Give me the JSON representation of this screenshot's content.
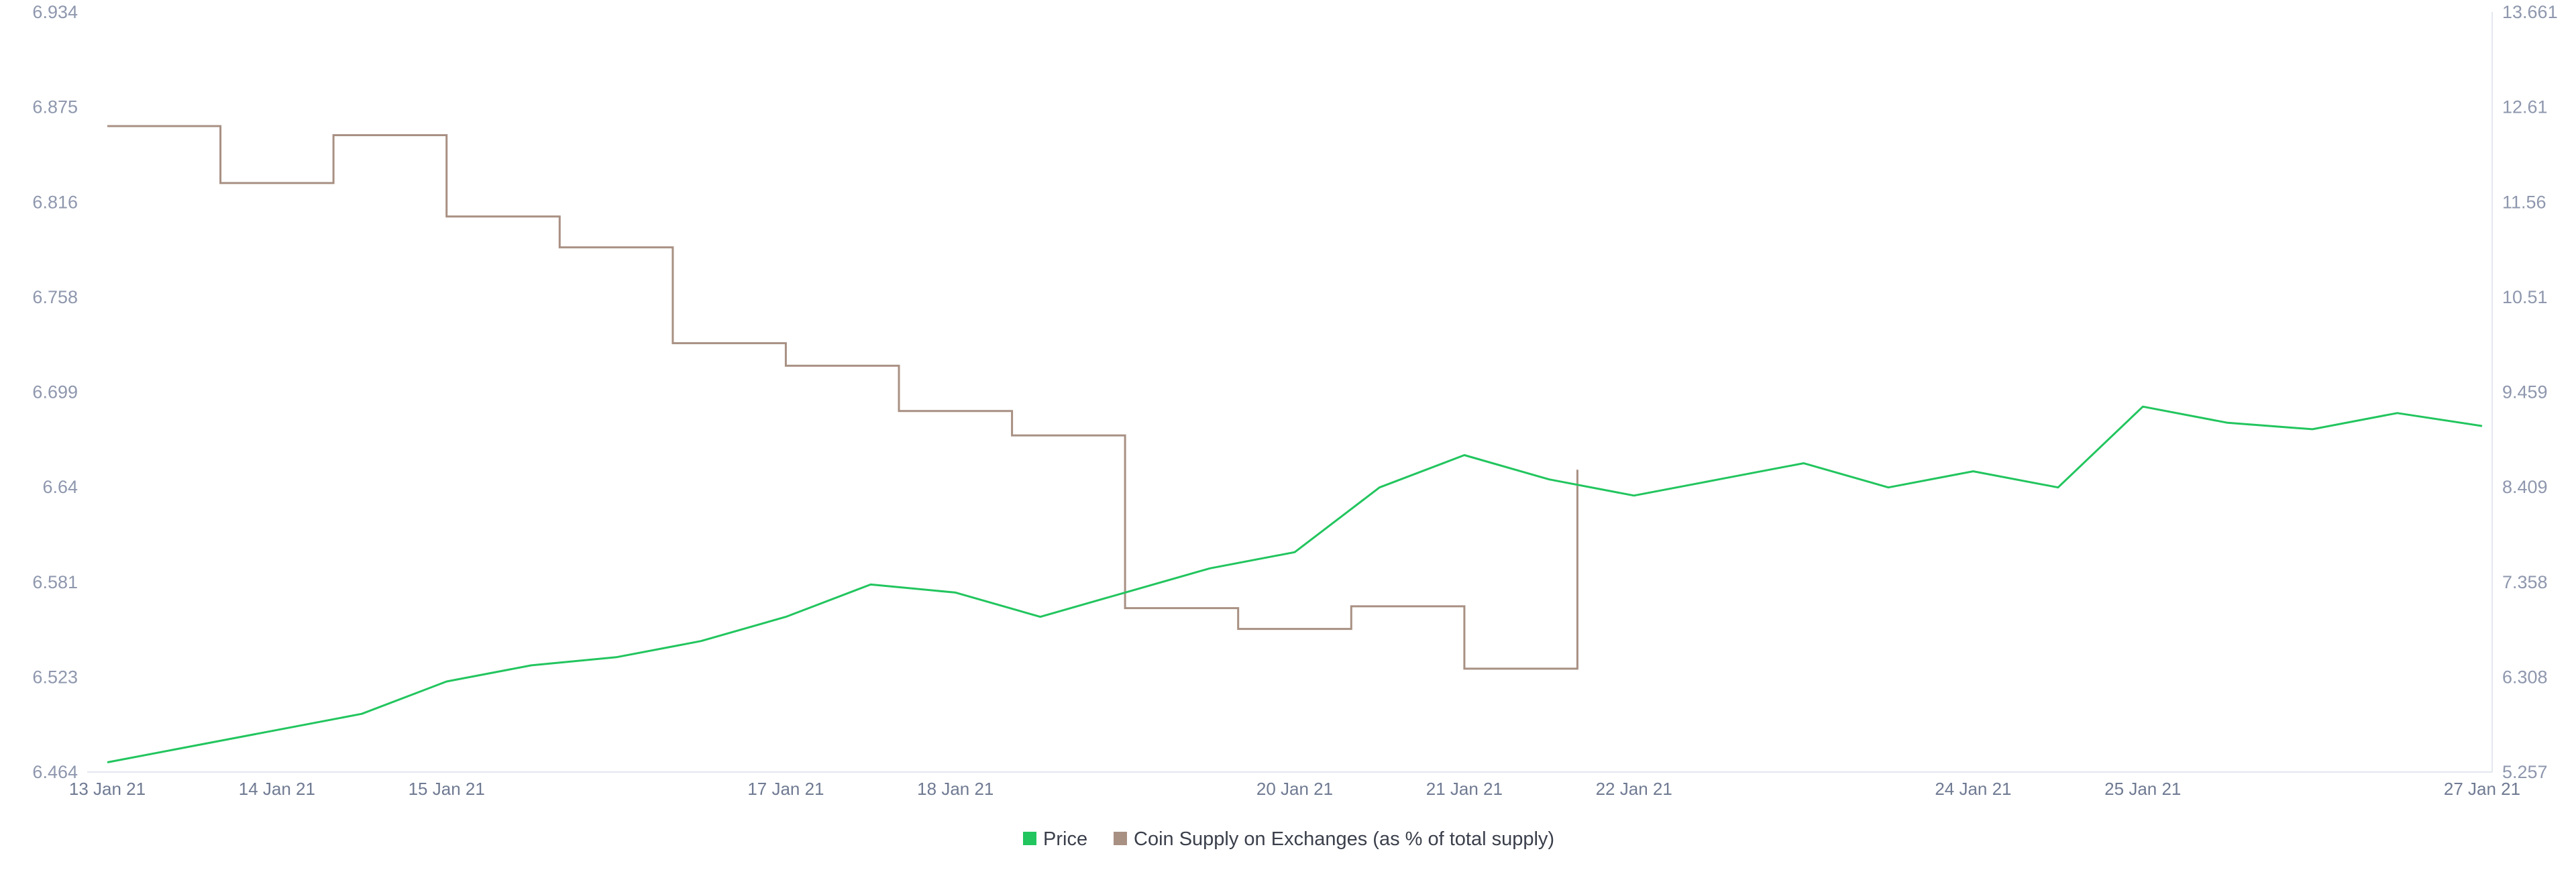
{
  "chart_data": {
    "type": "line",
    "title": "",
    "xlabel": "",
    "legend_position": "bottom-center",
    "grid": false,
    "x_tick_labels": [
      "13 Jan 21",
      "14 Jan 21",
      "15 Jan 21",
      "17 Jan 21",
      "18 Jan 21",
      "20 Jan 21",
      "21 Jan 21",
      "22 Jan 21",
      "24 Jan 21",
      "25 Jan 21",
      "27 Jan 21"
    ],
    "y_left": {
      "label": "",
      "ticks": [
        "6.934",
        "6.875",
        "6.816",
        "6.758",
        "6.699",
        "6.64",
        "6.581",
        "6.523",
        "6.464"
      ],
      "range": [
        6.464,
        6.934
      ]
    },
    "y_right": {
      "label": "",
      "ticks": [
        "13.661",
        "12.61",
        "11.56",
        "10.51",
        "9.459",
        "8.409",
        "7.358",
        "6.308",
        "5.257"
      ],
      "range": [
        5.257,
        13.661
      ]
    },
    "series": [
      {
        "name": "Price",
        "axis": "left",
        "color": "#22c55e",
        "x": [
          "13 Jan 21",
          "13 Jan 21 12:00",
          "14 Jan 21",
          "14 Jan 21 12:00",
          "15 Jan 21",
          "15 Jan 21 12:00",
          "16 Jan 21",
          "16 Jan 21 12:00",
          "17 Jan 21",
          "17 Jan 21 12:00",
          "18 Jan 21",
          "18 Jan 21 12:00",
          "19 Jan 21",
          "19 Jan 21 12:00",
          "20 Jan 21",
          "20 Jan 21 12:00",
          "21 Jan 21",
          "21 Jan 21 12:00",
          "22 Jan 21",
          "22 Jan 21 12:00",
          "23 Jan 21",
          "23 Jan 21 12:00",
          "24 Jan 21",
          "24 Jan 21 12:00",
          "25 Jan 21",
          "25 Jan 21 12:00",
          "26 Jan 21",
          "26 Jan 21 12:00",
          "27 Jan 21"
        ],
        "values": [
          6.47,
          6.48,
          6.49,
          6.5,
          6.52,
          6.53,
          6.535,
          6.545,
          6.56,
          6.58,
          6.575,
          6.56,
          6.575,
          6.59,
          6.6,
          6.64,
          6.66,
          6.645,
          6.635,
          6.645,
          6.655,
          6.64,
          6.65,
          6.64,
          6.69,
          6.68,
          6.676,
          6.686,
          6.678
        ]
      },
      {
        "name": "Coin Supply on Exchanges (as % of total supply)",
        "axis": "right",
        "color": "#a89083",
        "steps": [
          {
            "from": "13 Jan 21",
            "value": 12.4
          },
          {
            "from": "13 Jan 21 16:00",
            "value": 11.77
          },
          {
            "from": "14 Jan 21 08:00",
            "value": 12.3
          },
          {
            "from": "15 Jan 21",
            "value": 11.4
          },
          {
            "from": "15 Jan 21 16:00",
            "value": 11.06
          },
          {
            "from": "16 Jan 21 08:00",
            "value": 10.0
          },
          {
            "from": "17 Jan 21",
            "value": 9.75
          },
          {
            "from": "17 Jan 21 16:00",
            "value": 9.25
          },
          {
            "from": "18 Jan 21 08:00",
            "value": 8.98
          },
          {
            "from": "19 Jan 21",
            "value": 7.07
          },
          {
            "from": "19 Jan 21 16:00",
            "value": 6.84
          },
          {
            "from": "20 Jan 21 08:00",
            "value": 7.09
          },
          {
            "from": "21 Jan 21",
            "value": 6.4
          },
          {
            "from": "21 Jan 21 16:00",
            "value": 8.6
          }
        ]
      }
    ]
  }
}
